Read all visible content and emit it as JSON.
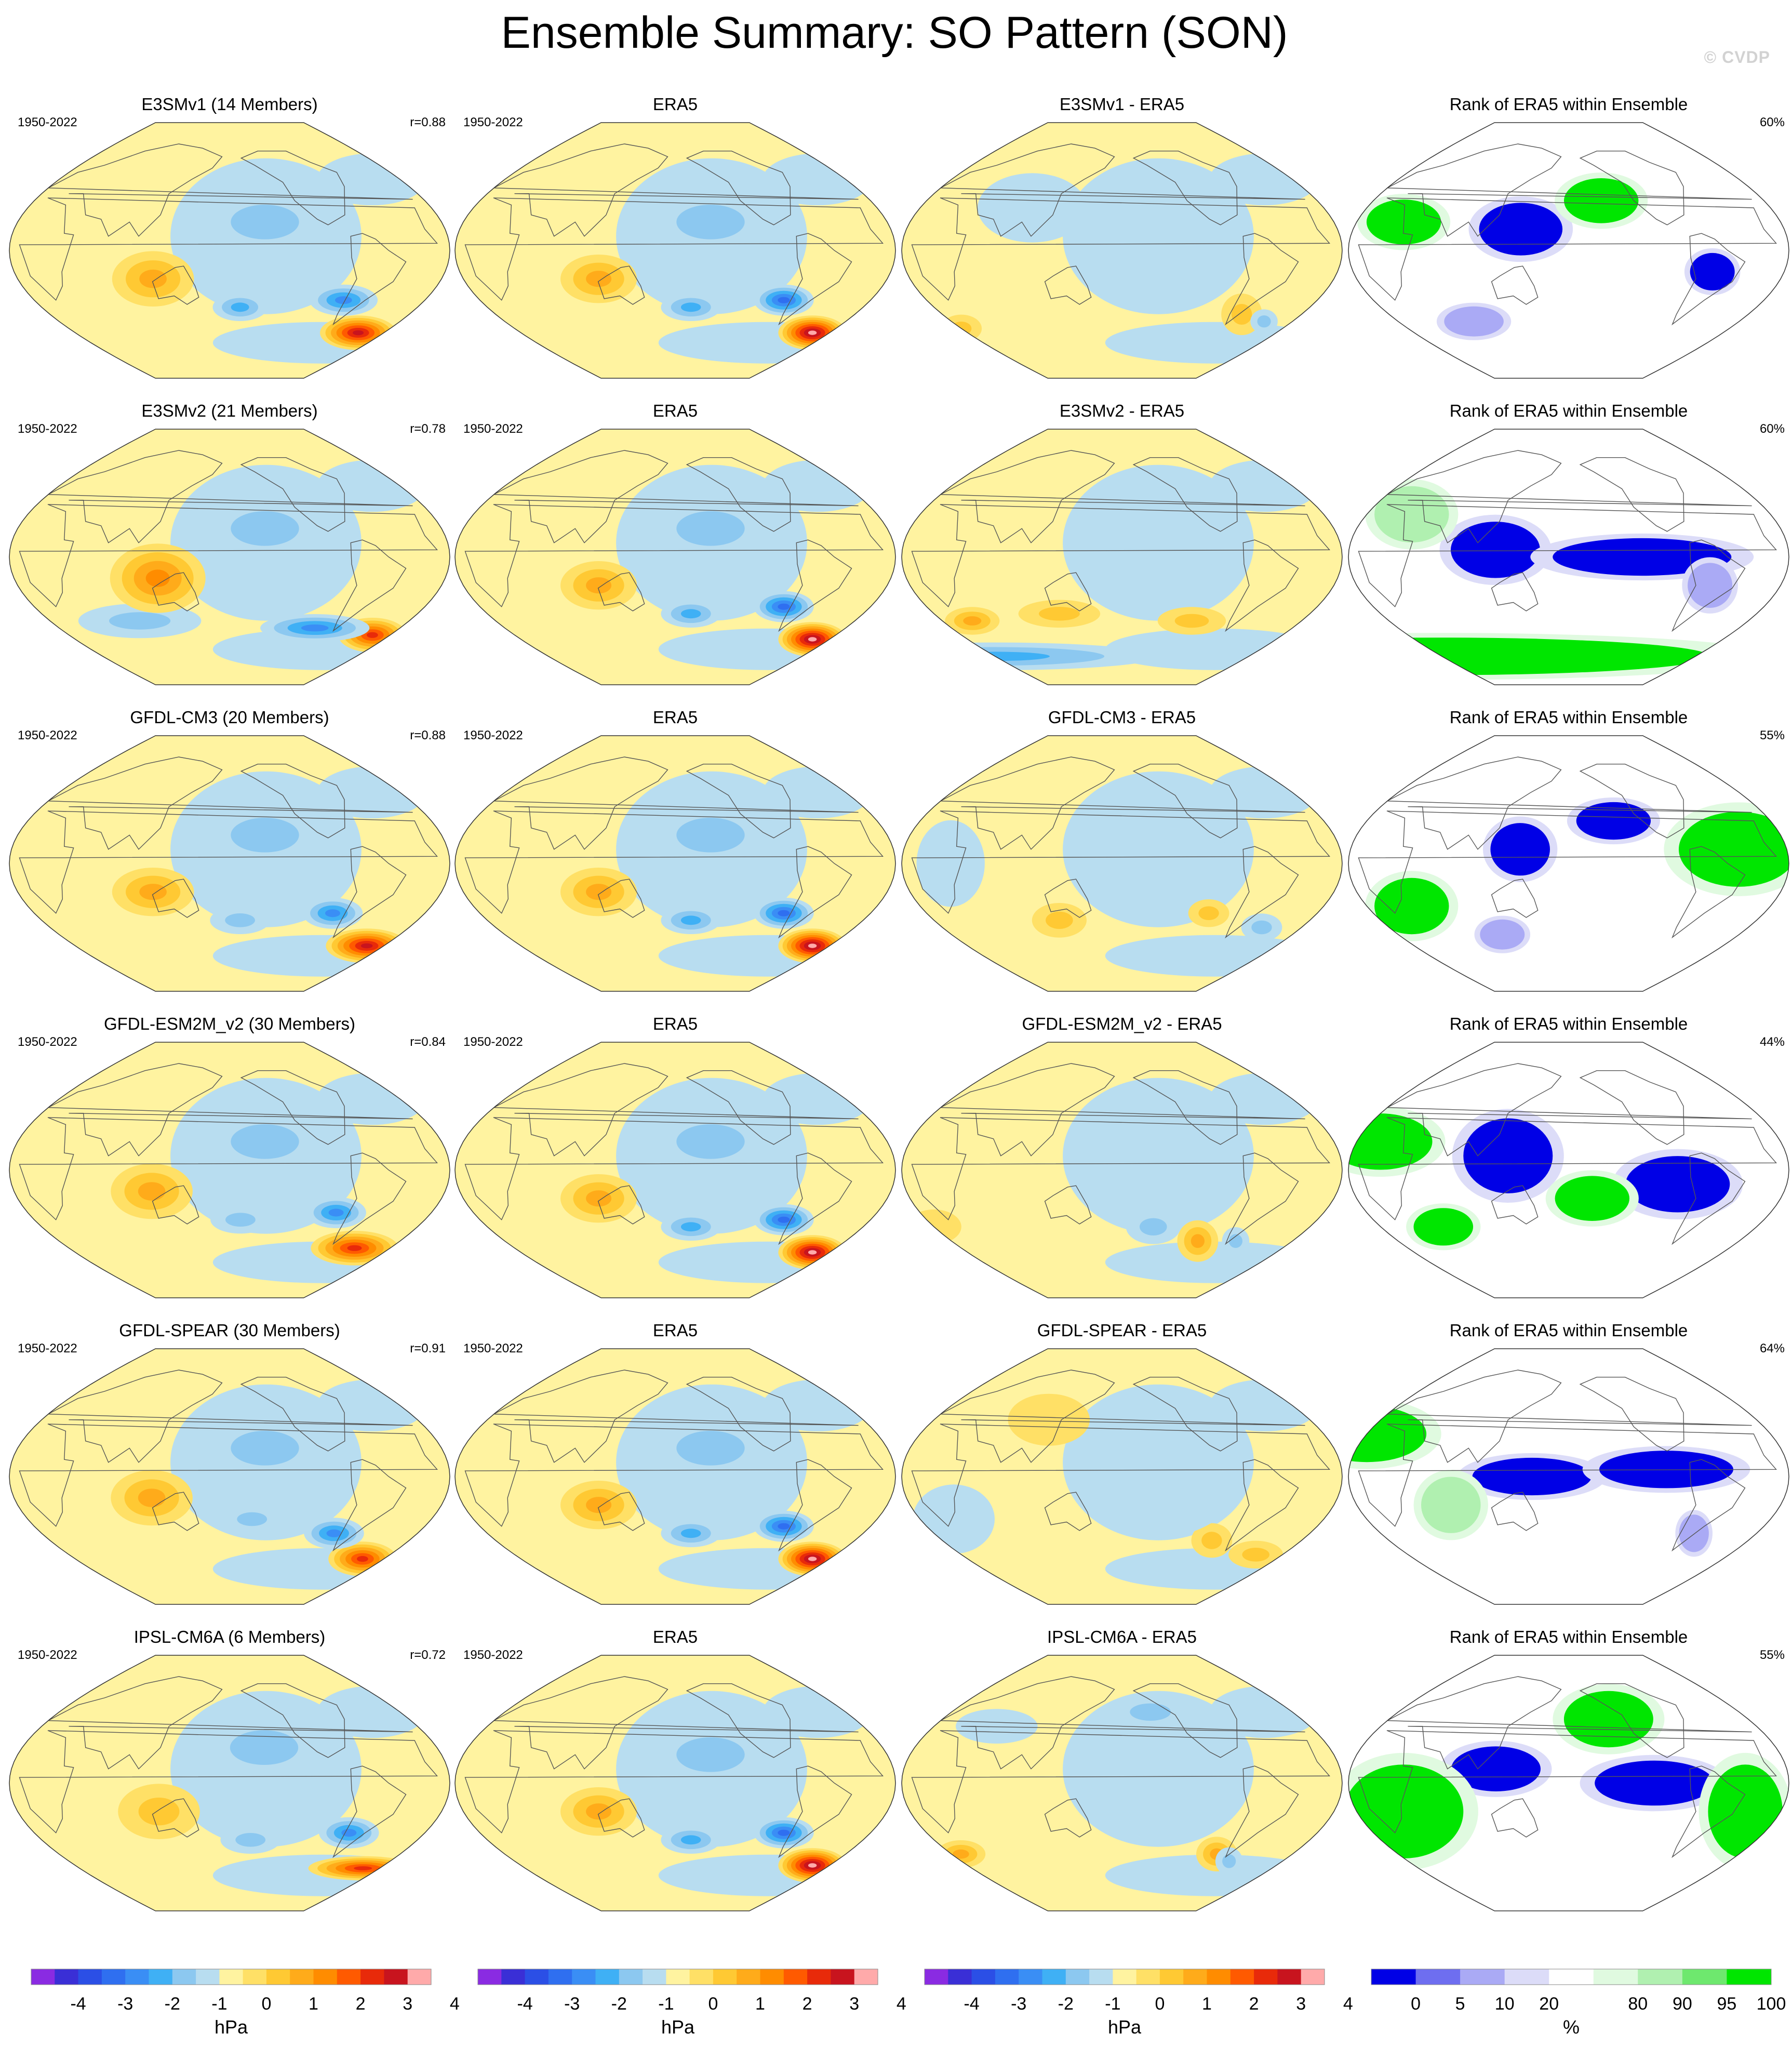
{
  "title": "Ensemble Summary: SO Pattern (SON)",
  "watermark": "© CVDP",
  "rows": [
    {
      "model_title": "E3SMv1 (14 Members)",
      "diff_title": "E3SMv1 - ERA5",
      "period": "1950-2022",
      "r": "r=0.88",
      "rank_pct": "60%",
      "model_blobs": [
        {
          "lon": -30,
          "lat": -58,
          "v": 3.2,
          "sx": 28,
          "sy": 10
        },
        {
          "lon": -75,
          "lat": -35,
          "v": -2.0,
          "sx": 25,
          "sy": 9
        },
        {
          "lon": -170,
          "lat": -40,
          "v": -1.2,
          "sx": 20,
          "sy": 8
        },
        {
          "lon": 115,
          "lat": -20,
          "v": 1.4,
          "sx": 30,
          "sy": 16
        },
        {
          "lon": -150,
          "lat": 20,
          "v": -0.6,
          "sx": 50,
          "sy": 20
        }
      ],
      "diff_blobs": [
        {
          "lon": -60,
          "lat": -45,
          "v": 0.8,
          "sx": 15,
          "sy": 12
        },
        {
          "lon": -30,
          "lat": -50,
          "v": -1.0,
          "sx": 10,
          "sy": 7
        },
        {
          "lon": 0,
          "lat": -55,
          "v": 0.6,
          "sx": 15,
          "sy": 8
        },
        {
          "lon": -150,
          "lat": 0,
          "v": -0.5,
          "sx": 50,
          "sy": 30
        },
        {
          "lon": 100,
          "lat": 30,
          "v": -0.4,
          "sx": 40,
          "sy": 20
        }
      ],
      "rank_blobs": [
        {
          "lon": 140,
          "lat": 15,
          "v": -1,
          "sx": 28,
          "sy": 14
        },
        {
          "lon": 40,
          "lat": 20,
          "v": 1,
          "sx": 25,
          "sy": 12
        },
        {
          "lon": -60,
          "lat": -15,
          "v": -0.9,
          "sx": 15,
          "sy": 10
        },
        {
          "lon": -150,
          "lat": 35,
          "v": 1,
          "sx": 25,
          "sy": 12
        },
        {
          "lon": 80,
          "lat": -50,
          "v": -0.8,
          "sx": 20,
          "sy": 8
        }
      ]
    },
    {
      "model_title": "E3SMv2 (21 Members)",
      "diff_title": "E3SMv2 - ERA5",
      "period": "1950-2022",
      "r": "r=0.78",
      "rank_pct": "60%",
      "model_blobs": [
        {
          "lon": -20,
          "lat": -55,
          "v": 3.0,
          "sx": 25,
          "sy": 10
        },
        {
          "lon": -90,
          "lat": -50,
          "v": -1.8,
          "sx": 40,
          "sy": 8
        },
        {
          "lon": 90,
          "lat": -45,
          "v": -1.0,
          "sx": 45,
          "sy": 10
        },
        {
          "lon": 120,
          "lat": -15,
          "v": 1.6,
          "sx": 35,
          "sy": 20
        },
        {
          "lon": -150,
          "lat": 20,
          "v": -0.6,
          "sx": 50,
          "sy": 20
        }
      ],
      "diff_blobs": [
        {
          "lon": 0,
          "lat": -70,
          "v": -1.4,
          "sx": 120,
          "sy": 8
        },
        {
          "lon": 30,
          "lat": -45,
          "v": 1.2,
          "sx": 20,
          "sy": 8
        },
        {
          "lon": -110,
          "lat": -45,
          "v": 1.0,
          "sx": 25,
          "sy": 8
        },
        {
          "lon": -150,
          "lat": 10,
          "v": -0.5,
          "sx": 45,
          "sy": 25
        },
        {
          "lon": 120,
          "lat": -40,
          "v": 0.6,
          "sx": 30,
          "sy": 8
        }
      ],
      "rank_blobs": [
        {
          "lon": 120,
          "lat": 5,
          "v": -1,
          "sx": 30,
          "sy": 15
        },
        {
          "lon": -120,
          "lat": 0,
          "v": -0.9,
          "sx": 60,
          "sy": 10
        },
        {
          "lon": 0,
          "lat": -70,
          "v": 1,
          "sx": 180,
          "sy": 10
        },
        {
          "lon": 40,
          "lat": 30,
          "v": 0.7,
          "sx": 25,
          "sy": 15
        },
        {
          "lon": -60,
          "lat": -20,
          "v": -0.8,
          "sx": 15,
          "sy": 12
        }
      ]
    },
    {
      "model_title": "GFDL-CM3 (20 Members)",
      "diff_title": "GFDL-CM3 - ERA5",
      "period": "1950-2022",
      "r": "r=0.88",
      "rank_pct": "55%",
      "model_blobs": [
        {
          "lon": -20,
          "lat": -58,
          "v": 3.4,
          "sx": 30,
          "sy": 10
        },
        {
          "lon": -85,
          "lat": -35,
          "v": -2.0,
          "sx": 22,
          "sy": 9
        },
        {
          "lon": -170,
          "lat": -40,
          "v": -1.0,
          "sx": 22,
          "sy": 8
        },
        {
          "lon": 115,
          "lat": -20,
          "v": 1.5,
          "sx": 30,
          "sy": 14
        },
        {
          "lon": -150,
          "lat": 20,
          "v": -0.6,
          "sx": 50,
          "sy": 20
        }
      ],
      "diff_blobs": [
        {
          "lon": 120,
          "lat": -40,
          "v": 0.7,
          "sx": 20,
          "sy": 10
        },
        {
          "lon": -100,
          "lat": -35,
          "v": 0.6,
          "sx": 15,
          "sy": 8
        },
        {
          "lon": -40,
          "lat": -45,
          "v": -0.7,
          "sx": 15,
          "sy": 8
        },
        {
          "lon": -150,
          "lat": 20,
          "v": -0.5,
          "sx": 50,
          "sy": 25
        },
        {
          "lon": 40,
          "lat": 0,
          "v": -0.4,
          "sx": 25,
          "sy": 25
        }
      ],
      "rank_blobs": [
        {
          "lon": 140,
          "lat": 10,
          "v": -1,
          "sx": 20,
          "sy": 14
        },
        {
          "lon": -40,
          "lat": 10,
          "v": 1,
          "sx": 40,
          "sy": 20
        },
        {
          "lon": 40,
          "lat": -30,
          "v": 1,
          "sx": 25,
          "sy": 15
        },
        {
          "lon": -140,
          "lat": 30,
          "v": -0.9,
          "sx": 25,
          "sy": 10
        },
        {
          "lon": 110,
          "lat": -50,
          "v": -0.8,
          "sx": 15,
          "sy": 8
        }
      ]
    },
    {
      "model_title": "GFDL-ESM2M_v2 (30 Members)",
      "diff_title": "GFDL-ESM2M_v2 - ERA5",
      "period": "1950-2022",
      "r": "r=0.84",
      "rank_pct": "44%",
      "model_blobs": [
        {
          "lon": -40,
          "lat": -55,
          "v": 2.8,
          "sx": 32,
          "sy": 10
        },
        {
          "lon": -85,
          "lat": -30,
          "v": -1.6,
          "sx": 22,
          "sy": 9
        },
        {
          "lon": -170,
          "lat": -35,
          "v": -1.0,
          "sx": 22,
          "sy": 8
        },
        {
          "lon": 115,
          "lat": -15,
          "v": 1.2,
          "sx": 30,
          "sy": 16
        },
        {
          "lon": -150,
          "lat": 20,
          "v": -0.6,
          "sx": 50,
          "sy": 20
        }
      ],
      "diff_blobs": [
        {
          "lon": -100,
          "lat": -50,
          "v": 1.2,
          "sx": 15,
          "sy": 12
        },
        {
          "lon": -60,
          "lat": -50,
          "v": -1.0,
          "sx": 10,
          "sy": 8
        },
        {
          "lon": -150,
          "lat": -40,
          "v": -0.6,
          "sx": 20,
          "sy": 10
        },
        {
          "lon": -150,
          "lat": 20,
          "v": -0.4,
          "sx": 50,
          "sy": 25
        },
        {
          "lon": 0,
          "lat": -40,
          "v": 0.5,
          "sx": 20,
          "sy": 10
        }
      ],
      "rank_blobs": [
        {
          "lon": 130,
          "lat": 10,
          "v": -1,
          "sx": 30,
          "sy": 20
        },
        {
          "lon": -90,
          "lat": -10,
          "v": -1,
          "sx": 35,
          "sy": 15
        },
        {
          "lon": 20,
          "lat": 20,
          "v": 1,
          "sx": 35,
          "sy": 15
        },
        {
          "lon": -160,
          "lat": -20,
          "v": 1,
          "sx": 25,
          "sy": 12
        },
        {
          "lon": 60,
          "lat": -40,
          "v": 1,
          "sx": 20,
          "sy": 10
        }
      ]
    },
    {
      "model_title": "GFDL-SPEAR (30 Members)",
      "diff_title": "GFDL-SPEAR - ERA5",
      "period": "1950-2022",
      "r": "r=0.91",
      "rank_pct": "64%",
      "model_blobs": [
        {
          "lon": -25,
          "lat": -58,
          "v": 3.0,
          "sx": 25,
          "sy": 10
        },
        {
          "lon": -80,
          "lat": -40,
          "v": -1.8,
          "sx": 22,
          "sy": 9
        },
        {
          "lon": -160,
          "lat": -30,
          "v": -0.9,
          "sx": 22,
          "sy": 8
        },
        {
          "lon": 115,
          "lat": -15,
          "v": 1.4,
          "sx": 30,
          "sy": 16
        },
        {
          "lon": -150,
          "lat": 20,
          "v": -0.6,
          "sx": 50,
          "sy": 20
        }
      ],
      "diff_blobs": [
        {
          "lon": -90,
          "lat": -45,
          "v": 0.6,
          "sx": 15,
          "sy": 10
        },
        {
          "lon": -150,
          "lat": 0,
          "v": -0.5,
          "sx": 60,
          "sy": 35
        },
        {
          "lon": 30,
          "lat": -30,
          "v": -0.4,
          "sx": 30,
          "sy": 20
        },
        {
          "lon": -30,
          "lat": -55,
          "v": 0.6,
          "sx": 20,
          "sy": 8
        },
        {
          "lon": 110,
          "lat": 40,
          "v": 0.3,
          "sx": 30,
          "sy": 15
        }
      ],
      "rank_blobs": [
        {
          "lon": 150,
          "lat": 0,
          "v": -1,
          "sx": 40,
          "sy": 10
        },
        {
          "lon": -100,
          "lat": 5,
          "v": -1,
          "sx": 45,
          "sy": 10
        },
        {
          "lon": 0,
          "lat": 30,
          "v": 1,
          "sx": 40,
          "sy": 15
        },
        {
          "lon": -60,
          "lat": -40,
          "v": -0.8,
          "sx": 10,
          "sy": 10
        },
        {
          "lon": 80,
          "lat": -20,
          "v": 0.6,
          "sx": 20,
          "sy": 15
        }
      ]
    },
    {
      "model_title": "IPSL-CM6A (6 Members)",
      "diff_title": "IPSL-CM6A - ERA5",
      "period": "1950-2022",
      "r": "r=0.72",
      "rank_pct": "55%",
      "model_blobs": [
        {
          "lon": -20,
          "lat": -60,
          "v": 2.6,
          "sx": 40,
          "sy": 7
        },
        {
          "lon": -70,
          "lat": -35,
          "v": -2.0,
          "sx": 22,
          "sy": 9
        },
        {
          "lon": -160,
          "lat": -40,
          "v": -1.0,
          "sx": 22,
          "sy": 8
        },
        {
          "lon": 120,
          "lat": -20,
          "v": 1.0,
          "sx": 30,
          "sy": 16
        },
        {
          "lon": -150,
          "lat": 25,
          "v": -0.6,
          "sx": 50,
          "sy": 20
        }
      ],
      "diff_blobs": [
        {
          "lon": -80,
          "lat": -50,
          "v": 1.2,
          "sx": 15,
          "sy": 10
        },
        {
          "lon": -60,
          "lat": -55,
          "v": -1.0,
          "sx": 10,
          "sy": 8
        },
        {
          "lon": 10,
          "lat": -50,
          "v": 1.3,
          "sx": 18,
          "sy": 8
        },
        {
          "lon": -150,
          "lat": 50,
          "v": -0.6,
          "sx": 30,
          "sy": 10
        },
        {
          "lon": 60,
          "lat": 40,
          "v": -0.5,
          "sx": 30,
          "sy": 10
        }
      ],
      "rank_blobs": [
        {
          "lon": 120,
          "lat": 10,
          "v": -1,
          "sx": 30,
          "sy": 12
        },
        {
          "lon": -110,
          "lat": 0,
          "v": -1,
          "sx": 40,
          "sy": 12
        },
        {
          "lon": 40,
          "lat": -20,
          "v": 1,
          "sx": 40,
          "sy": 25
        },
        {
          "lon": -30,
          "lat": -20,
          "v": 1,
          "sx": 25,
          "sy": 25
        },
        {
          "lon": -140,
          "lat": 45,
          "v": 1,
          "sx": 30,
          "sy": 15
        }
      ]
    }
  ],
  "obs_title": "ERA5",
  "rank_title": "Rank of ERA5 within Ensemble",
  "obs_blobs": [
    {
      "lon": -20,
      "lat": -58,
      "v": 3.6,
      "sx": 25,
      "sy": 10
    },
    {
      "lon": -80,
      "lat": -35,
      "v": -2.2,
      "sx": 22,
      "sy": 9
    },
    {
      "lon": -165,
      "lat": -40,
      "v": -1.2,
      "sx": 22,
      "sy": 8
    },
    {
      "lon": 115,
      "lat": -20,
      "v": 1.5,
      "sx": 28,
      "sy": 14
    },
    {
      "lon": -150,
      "lat": 20,
      "v": -0.6,
      "sx": 50,
      "sy": 20
    }
  ],
  "colorbar_hpa": {
    "unit": "hPa",
    "ticks": [
      "-4",
      "-3",
      "-2",
      "-1",
      "0",
      "1",
      "2",
      "3",
      "4"
    ],
    "colors": [
      "#8a2be2",
      "#3a2fd6",
      "#2b4fe6",
      "#2f6ff0",
      "#3a8ef5",
      "#3fb0f5",
      "#8cc8f0",
      "#b8ddf0",
      "#fff3a0",
      "#ffe066",
      "#ffc933",
      "#ffab1a",
      "#ff8c00",
      "#ff5a00",
      "#e82a0a",
      "#c8141e",
      "#ffaaaa"
    ]
  },
  "colorbar_rank": {
    "unit": "%",
    "ticks": [
      "0",
      "5",
      "10",
      "20",
      "80",
      "90",
      "95",
      "100"
    ],
    "colors": [
      "#0000e6",
      "#6e6ef0",
      "#aaaaf5",
      "#dcdcf8",
      "#ffffff",
      "#e0fae0",
      "#b0f0b0",
      "#6ee86e",
      "#00e600"
    ]
  },
  "chart_data": {
    "type": "heatmap",
    "title": "Ensemble Summary: SO Pattern (SON)",
    "projection": "Robinson, Pacific-centered",
    "layout": "6 rows x 4 columns",
    "columns": [
      "model ensemble mean pattern",
      "ERA5",
      "model - ERA5",
      "Rank of ERA5 within Ensemble"
    ],
    "models": [
      "E3SMv1 (14 Members)",
      "E3SMv2 (21 Members)",
      "GFDL-CM3 (20 Members)",
      "GFDL-ESM2M_v2 (30 Members)",
      "GFDL-SPEAR (30 Members)",
      "IPSL-CM6A (6 Members)"
    ],
    "pattern_correlations": [
      0.88,
      0.78,
      0.88,
      0.84,
      0.91,
      0.72
    ],
    "rank_percent": [
      60,
      60,
      55,
      44,
      64,
      55
    ],
    "period": "1950-2022",
    "units": [
      "hPa",
      "%"
    ],
    "hpa_range": [
      -4,
      4
    ]
  }
}
